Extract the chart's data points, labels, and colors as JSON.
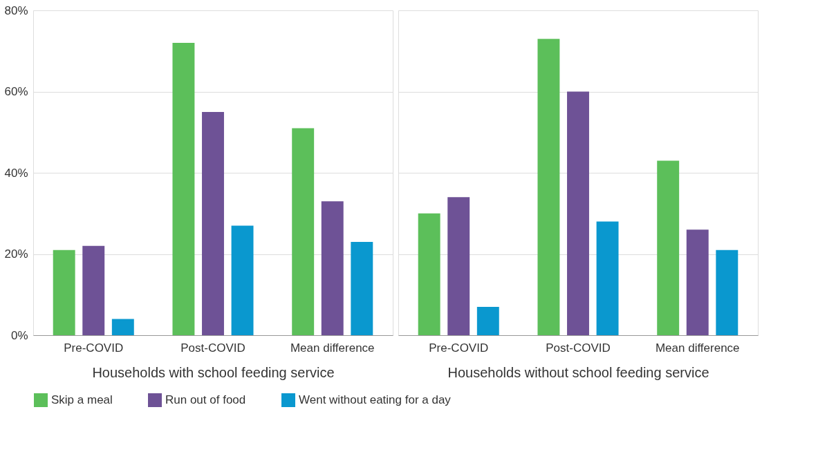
{
  "chart_data": [
    {
      "type": "bar",
      "xlabel": "Households with school feeding service",
      "categories": [
        "Pre-COVID",
        "Post-COVID",
        "Mean difference"
      ],
      "ylim": [
        0,
        80
      ],
      "yticks": [
        {
          "value": 0,
          "label": "0%"
        },
        {
          "value": 20,
          "label": "20%"
        },
        {
          "value": 40,
          "label": "40%"
        },
        {
          "value": 60,
          "label": "60%"
        },
        {
          "value": 80,
          "label": "80%"
        }
      ],
      "grid": "y",
      "legend": "bottom",
      "series": [
        {
          "name": "Skip a meal",
          "color": "#5cbf5a",
          "values": [
            21,
            72,
            51
          ]
        },
        {
          "name": "Run out of food",
          "color": "#6e5296",
          "values": [
            22,
            55,
            33
          ]
        },
        {
          "name": "Went without eating for a day",
          "color": "#0a98cf",
          "values": [
            4,
            27,
            23
          ]
        }
      ]
    },
    {
      "type": "bar",
      "xlabel": "Households without school feeding service",
      "categories": [
        "Pre-COVID",
        "Post-COVID",
        "Mean difference"
      ],
      "ylim": [
        0,
        80
      ],
      "yticks": [
        0,
        20,
        40,
        60,
        80
      ],
      "grid": "y",
      "legend": "bottom",
      "tick_labels": "x",
      "series": [
        {
          "name": "Skip a meal",
          "color": "#5cbf5a",
          "values": [
            30,
            73,
            43
          ]
        },
        {
          "name": "Run out of food",
          "color": "#6e5296",
          "values": [
            34,
            60,
            26
          ]
        },
        {
          "name": "Went without eating for a day",
          "color": "#0a98cf",
          "values": [
            7,
            28,
            21
          ]
        }
      ]
    }
  ]
}
